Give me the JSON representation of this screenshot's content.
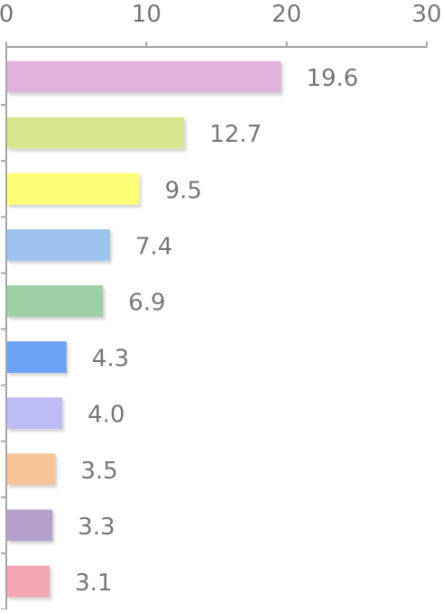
{
  "chart_data": {
    "type": "bar",
    "orientation": "horizontal",
    "x_axis_position": "top",
    "xlim": [
      0,
      30
    ],
    "x_ticks": [
      0,
      10,
      20,
      30
    ],
    "x_tick_labels": [
      "0",
      "10",
      "20",
      "30"
    ],
    "grid": false,
    "legend": "none",
    "values": [
      19.6,
      12.7,
      9.5,
      7.4,
      6.9,
      4.3,
      4.0,
      3.5,
      3.3,
      3.1
    ],
    "data_labels": [
      "19.6",
      "12.7",
      "9.5",
      "7.4",
      "6.9",
      "4.3",
      "4.0",
      "3.5",
      "3.3",
      "3.1"
    ],
    "bar_colors": [
      "#E2B2DF",
      "#DAE590",
      "#FFFF77",
      "#9CC4EE",
      "#9CD1A3",
      "#6AA2F6",
      "#BDBCF4",
      "#F6C497",
      "#B5A0CD",
      "#F4A7B1"
    ],
    "axis_color": "#A6A6A6",
    "label_color": "#767676"
  }
}
